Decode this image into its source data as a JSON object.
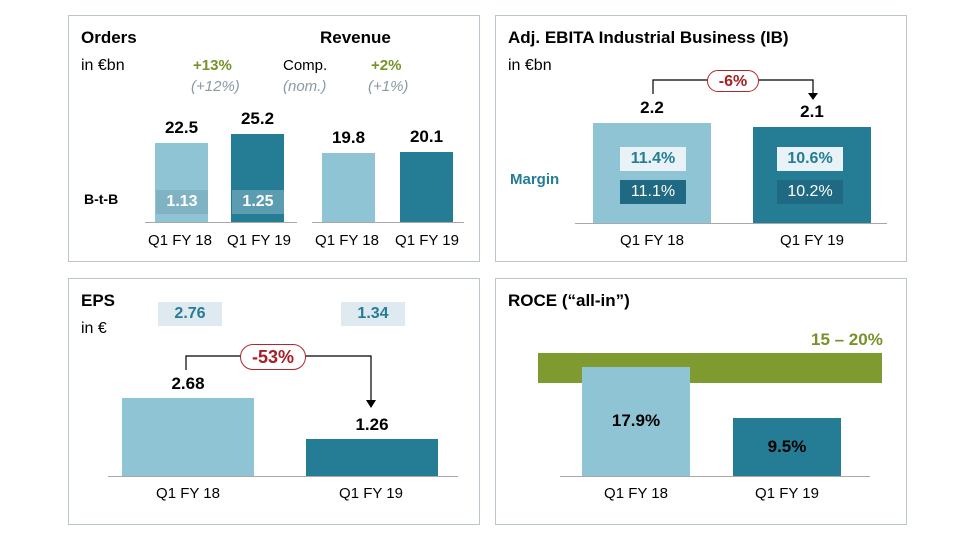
{
  "chart_data": [
    {
      "type": "bar",
      "panel": "orders-revenue",
      "orders_title": "Orders",
      "revenue_title": "Revenue",
      "unit": "in €bn",
      "categories": [
        "Q1 FY 18",
        "Q1 FY 19"
      ],
      "orders_values": [
        22.5,
        25.2
      ],
      "orders_values_text": [
        "22.5",
        "25.2"
      ],
      "revenue_values": [
        19.8,
        20.1
      ],
      "revenue_values_text": [
        "19.8",
        "20.1"
      ],
      "btb_label": "B-t-B",
      "btb_values": [
        "1.13",
        "1.25"
      ],
      "comp_label": "Comp.",
      "nom_label": "(nom.)",
      "orders_comp_growth": "+13%",
      "orders_nom_growth": "(+12%)",
      "revenue_comp_growth": "+2%",
      "revenue_nom_growth": "(+1%)"
    },
    {
      "type": "bar",
      "panel": "ebita",
      "title": "Adj. EBITA Industrial Business (IB)",
      "unit": "in €bn",
      "categories": [
        "Q1 FY 18",
        "Q1 FY 19"
      ],
      "values": [
        2.2,
        2.1
      ],
      "values_text": [
        "2.2",
        "2.1"
      ],
      "change": "-6%",
      "margin_label": "Margin",
      "margin_top": [
        "11.4%",
        "10.6%"
      ],
      "margin_bottom": [
        "11.1%",
        "10.2%"
      ]
    },
    {
      "type": "bar",
      "panel": "eps",
      "title": "EPS",
      "unit": "in €",
      "categories": [
        "Q1 FY 18",
        "Q1 FY 19"
      ],
      "values": [
        2.68,
        1.26
      ],
      "values_text": [
        "2.68",
        "1.26"
      ],
      "change": "-53%",
      "boxed_values": [
        "2.76",
        "1.34"
      ]
    },
    {
      "type": "bar",
      "panel": "roce",
      "title": "ROCE (“all-in”)",
      "categories": [
        "Q1 FY 18",
        "Q1 FY 19"
      ],
      "values": [
        17.9,
        9.5
      ],
      "values_text": [
        "17.9%",
        "9.5%"
      ],
      "target_range": "15 – 20%",
      "target_low": 15,
      "target_high": 20
    }
  ],
  "colors": {
    "bar_light": "#8ec4d3",
    "bar_dark": "#247d95",
    "accent_green": "#76922a",
    "change_red": "#a51f24",
    "panel_border": "#b9c6cc"
  }
}
